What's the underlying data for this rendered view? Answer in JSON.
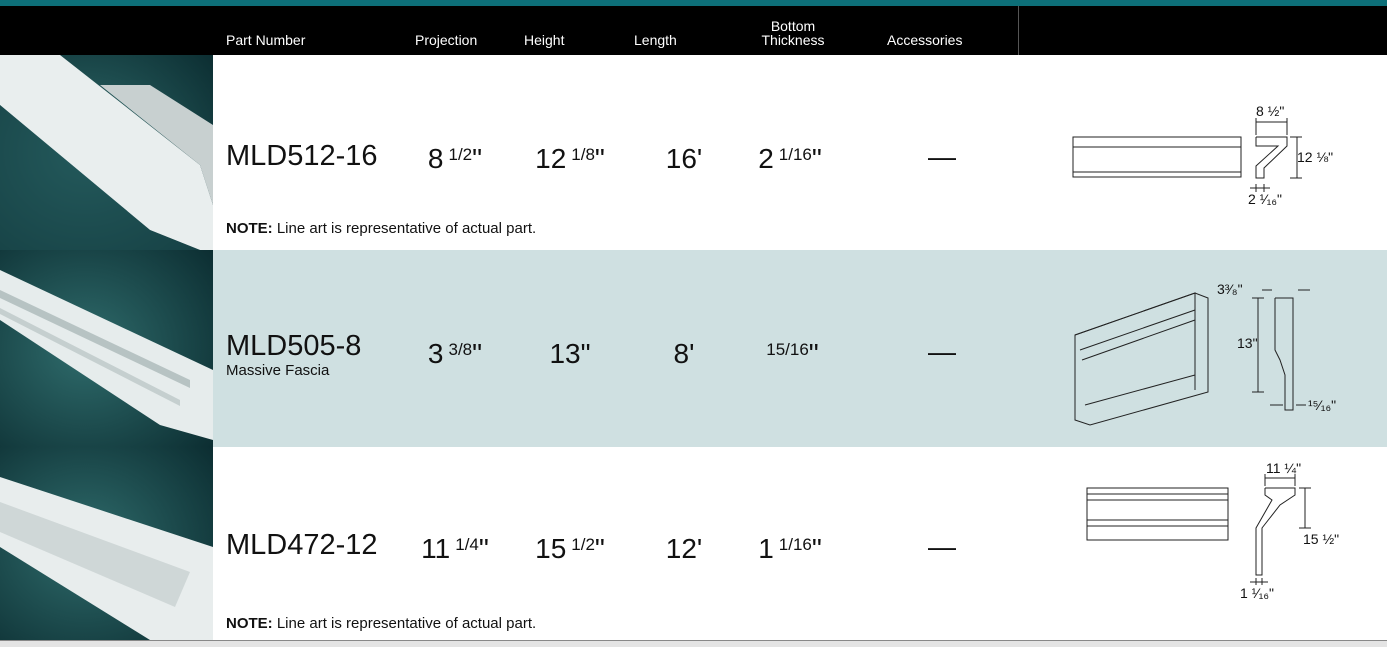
{
  "header": {
    "columns": [
      "Part Number",
      "Projection",
      "Height",
      "Length",
      "Bottom Thickness",
      "Accessories"
    ]
  },
  "rows": [
    {
      "part_number": "MLD512-16",
      "projection": {
        "whole": "8",
        "fraction": "1/2",
        "unit": "\""
      },
      "height": {
        "whole": "12",
        "fraction": "1/8",
        "unit": "\""
      },
      "length": {
        "whole": "16",
        "unit": "'"
      },
      "bottom_thickness": {
        "whole": "2",
        "fraction": "1/16",
        "unit": "\""
      },
      "accessories": "—",
      "note": {
        "label": "NOTE:",
        "text": "Line art is representative of actual part."
      },
      "diagram_labels": [
        "8 ½\"",
        "12 ⅛\"",
        "2 ¹⁄₁₆\""
      ]
    },
    {
      "part_number": "MLD505-8",
      "subtitle": "Massive Fascia",
      "projection": {
        "whole": "3",
        "fraction": "3/8",
        "unit": "\""
      },
      "height": {
        "whole": "13",
        "unit": "\""
      },
      "length": {
        "whole": "8",
        "unit": "'"
      },
      "bottom_thickness": {
        "fraction": "15/16",
        "unit": "\""
      },
      "accessories": "—",
      "diagram_labels": [
        "3³⁄₈\"",
        "13\"",
        "¹⁵⁄₁₆\""
      ]
    },
    {
      "part_number": "MLD472-12",
      "projection": {
        "whole": "11",
        "fraction": "1/4",
        "unit": "\""
      },
      "height": {
        "whole": "15",
        "fraction": "1/2",
        "unit": "\""
      },
      "length": {
        "whole": "12",
        "unit": "'"
      },
      "bottom_thickness": {
        "whole": "1",
        "fraction": "1/16",
        "unit": "\""
      },
      "accessories": "—",
      "note": {
        "label": "NOTE:",
        "text": "Line art is representative of actual part."
      },
      "diagram_labels": [
        "11 ¼\"",
        "15 ½\"",
        "1 ¹⁄₁₆\""
      ]
    }
  ]
}
